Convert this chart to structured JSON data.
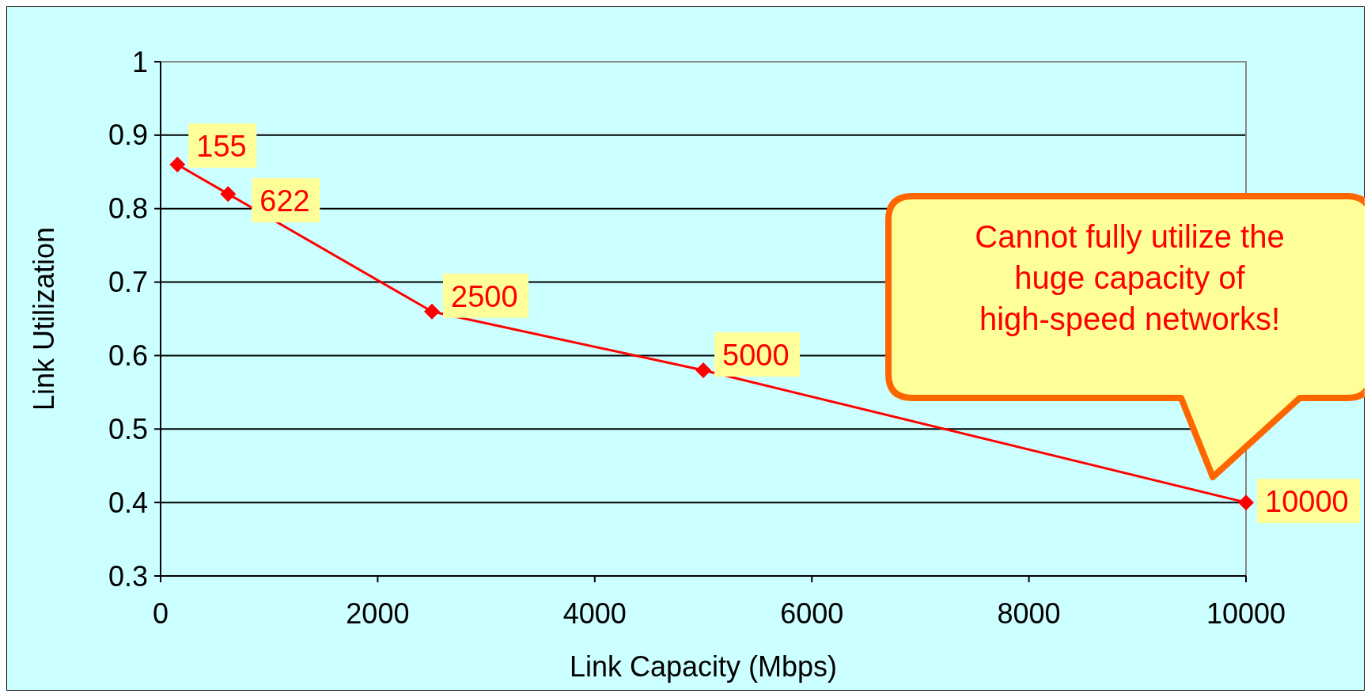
{
  "chart_data": {
    "type": "line",
    "xlabel": "Link Capacity (Mbps)",
    "ylabel": "Link Utilization",
    "x": [
      155,
      622,
      2500,
      5000,
      10000
    ],
    "series": [
      {
        "color": "#ff0000",
        "values": [
          0.86,
          0.82,
          0.66,
          0.58,
          0.4
        ]
      }
    ],
    "xlim": [
      0,
      10000
    ],
    "xticks": [
      0,
      2000,
      4000,
      6000,
      8000,
      10000
    ],
    "ylim": [
      0.3,
      1
    ],
    "yticks": [
      0.3,
      0.4,
      0.5,
      0.6,
      0.7,
      0.8,
      0.9,
      1
    ],
    "grid": "y",
    "marker": "diamond",
    "line_style": "solid",
    "annotations": [
      {
        "text": "155",
        "x": 155,
        "y": 0.86
      },
      {
        "text": "622",
        "x": 622,
        "y": 0.82
      },
      {
        "text": "2500",
        "x": 2500,
        "y": 0.66
      },
      {
        "text": "5000",
        "x": 5000,
        "y": 0.58
      },
      {
        "text": "10000",
        "x": 10000,
        "y": 0.4
      },
      "Cannot fully utilize the huge capacity of high-speed networks!"
    ]
  }
}
